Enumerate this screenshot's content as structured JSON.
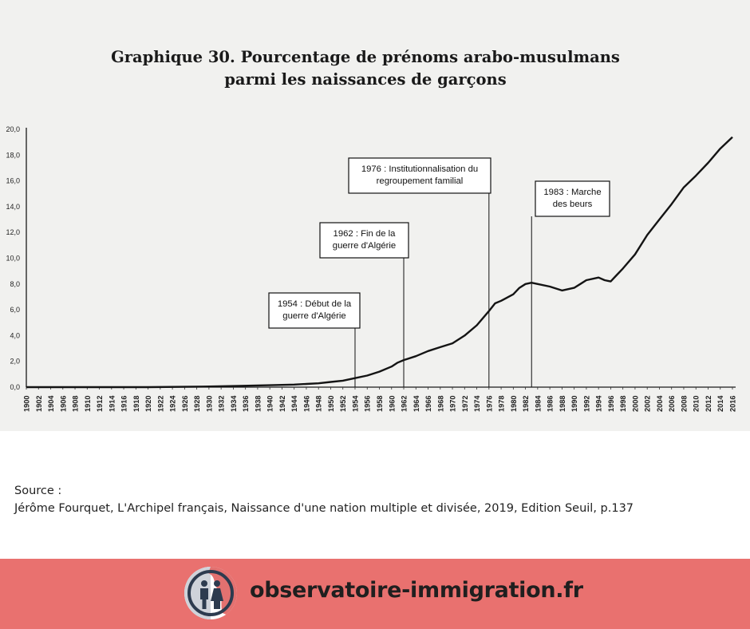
{
  "chart_data": {
    "type": "line",
    "title_line1": "Graphique 30. Pourcentage de prénoms arabo-musulmans",
    "title_line2": "parmi les naissances de garçons",
    "ylim": [
      0,
      20
    ],
    "y_ticks": [
      "0,0",
      "2,0",
      "4,0",
      "6,0",
      "8,0",
      "10,0",
      "12,0",
      "14,0",
      "16,0",
      "18,0",
      "20,0"
    ],
    "x_ticks": [
      "1900",
      "1902",
      "1904",
      "1906",
      "1908",
      "1910",
      "1912",
      "1914",
      "1916",
      "1918",
      "1920",
      "1922",
      "1924",
      "1926",
      "1928",
      "1930",
      "1932",
      "1934",
      "1936",
      "1938",
      "1940",
      "1942",
      "1944",
      "1946",
      "1948",
      "1950",
      "1952",
      "1954",
      "1956",
      "1958",
      "1960",
      "1962",
      "1964",
      "1966",
      "1968",
      "1970",
      "1972",
      "1974",
      "1976",
      "1978",
      "1980",
      "1982",
      "1984",
      "1986",
      "1988",
      "1990",
      "1992",
      "1994",
      "1996",
      "1998",
      "2000",
      "2002",
      "2004",
      "2006",
      "2008",
      "2010",
      "2012",
      "2014",
      "2016"
    ],
    "grid": false,
    "legend": "none",
    "series": [
      {
        "x": [
          1900,
          1910,
          1920,
          1930,
          1935,
          1940,
          1944,
          1946,
          1948,
          1950,
          1952,
          1954,
          1956,
          1958,
          1960,
          1961,
          1962,
          1964,
          1966,
          1968,
          1970,
          1972,
          1974,
          1976,
          1977,
          1978,
          1980,
          1981,
          1982,
          1983,
          1984,
          1986,
          1988,
          1990,
          1991,
          1992,
          1994,
          1995,
          1996,
          1997,
          1998,
          2000,
          2002,
          2004,
          2006,
          2008,
          2010,
          2012,
          2014,
          2016
        ],
        "values": [
          0.0,
          0.0,
          0.0,
          0.05,
          0.1,
          0.15,
          0.2,
          0.25,
          0.3,
          0.4,
          0.5,
          0.7,
          0.9,
          1.2,
          1.6,
          1.9,
          2.1,
          2.4,
          2.8,
          3.1,
          3.4,
          4.0,
          4.8,
          5.9,
          6.5,
          6.7,
          7.2,
          7.7,
          8.0,
          8.1,
          8.0,
          7.8,
          7.5,
          7.7,
          8.0,
          8.3,
          8.5,
          8.3,
          8.2,
          8.7,
          9.2,
          10.3,
          11.8,
          13.0,
          14.2,
          15.5,
          16.4,
          17.4,
          18.5,
          19.4
        ],
        "color": "#141414"
      }
    ],
    "annotations": [
      {
        "year": 1954,
        "lines": [
          "1954 : Début de la",
          "guerre d'Algérie"
        ]
      },
      {
        "year": 1962,
        "lines": [
          "1962 : Fin de la",
          "guerre d'Algérie"
        ]
      },
      {
        "year": 1976,
        "lines": [
          "1976 : Institutionnalisation du",
          "regroupement familial"
        ]
      },
      {
        "year": 1983,
        "lines": [
          "1983 : Marche",
          "des beurs"
        ]
      }
    ]
  },
  "source": {
    "label": "Source :",
    "text": "Jérôme Fourquet, L'Archipel français, Naissance d'une nation multiple et divisée, 2019, Edition Seuil, p.137"
  },
  "footer": {
    "site": "observatoire-immigration.fr",
    "logo_icon": "people-icon",
    "background_color": "#e9716f"
  }
}
